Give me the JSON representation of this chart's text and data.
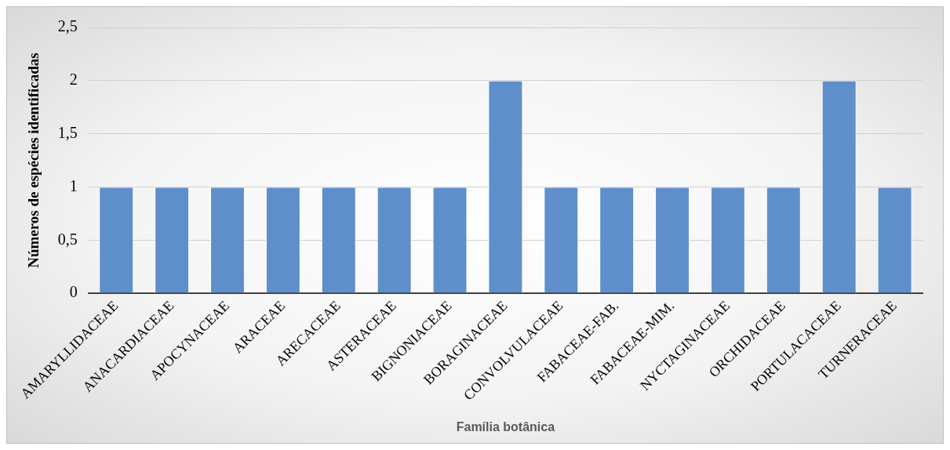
{
  "chart_data": {
    "type": "bar",
    "xlabel": "Família botânica",
    "ylabel": "Números de espécies identificadas",
    "categories": [
      "AMARYLLIDACEAE",
      "ANACARDIACEAE",
      "APOCYNACEAE",
      "ARACEAE",
      "ARECACEAE",
      "ASTERACEAE",
      "BIGNONIACEAE",
      "BORAGINACEAE",
      "CONVOLVULACEAE",
      "FABACEAE-FAB.",
      "FABACEAE-MIM.",
      "NYCTAGINACEAE",
      "ORCHIDACEAE",
      "PORTULACACEAE",
      "TURNERACEAE"
    ],
    "values": [
      1,
      1,
      1,
      1,
      1,
      1,
      1,
      2,
      1,
      1,
      1,
      1,
      1,
      2,
      1
    ],
    "color": "#5f8fca",
    "ylim": [
      0,
      2.5
    ],
    "yticks": [
      0,
      {
        "value": 0.5,
        "label": "0,5"
      },
      1,
      {
        "value": 1.5,
        "label": "1,5"
      },
      2,
      {
        "value": 2.5,
        "label": "2,5"
      }
    ],
    "grid": "y",
    "legend": false
  }
}
